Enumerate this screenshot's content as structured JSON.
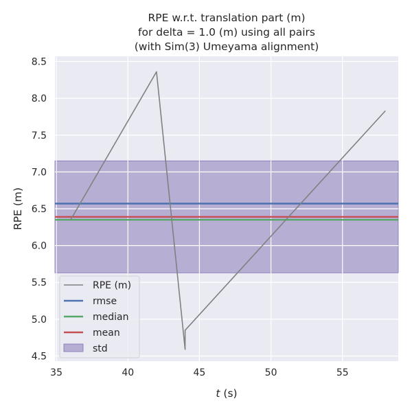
{
  "chart_data": {
    "type": "line",
    "title_lines": [
      "RPE w.r.t. translation part (m)",
      "for delta = 1.0 (m) using all pairs",
      "(with Sim(3) Umeyama alignment)"
    ],
    "xlabel_var": "t",
    "xlabel_unit": " (s)",
    "ylabel": "RPE (m)",
    "xlim": [
      34.9,
      58.9
    ],
    "ylim": [
      4.43,
      8.57
    ],
    "xticks": [
      35,
      40,
      45,
      50,
      55
    ],
    "yticks": [
      4.5,
      5.0,
      5.5,
      6.0,
      6.5,
      7.0,
      7.5,
      8.0,
      8.5
    ],
    "grid": true,
    "legend_position": "lower-left",
    "series": [
      {
        "name": "RPE (m)",
        "color": "#808080",
        "x": [
          36.0,
          42.0,
          44.0,
          44.0,
          58.0
        ],
        "y": [
          6.35,
          8.36,
          4.59,
          4.85,
          7.83
        ]
      }
    ],
    "hlines": [
      {
        "name": "rmse",
        "value": 6.57,
        "color": "#4c72b0"
      },
      {
        "name": "median",
        "value": 6.35,
        "color": "#55a868"
      },
      {
        "name": "mean",
        "value": 6.39,
        "color": "#c44e52"
      }
    ],
    "band": {
      "name": "std",
      "low": 5.63,
      "high": 7.15,
      "color": "#8172b3"
    },
    "legend_labels": [
      "RPE (m)",
      "rmse",
      "median",
      "mean",
      "std"
    ]
  }
}
